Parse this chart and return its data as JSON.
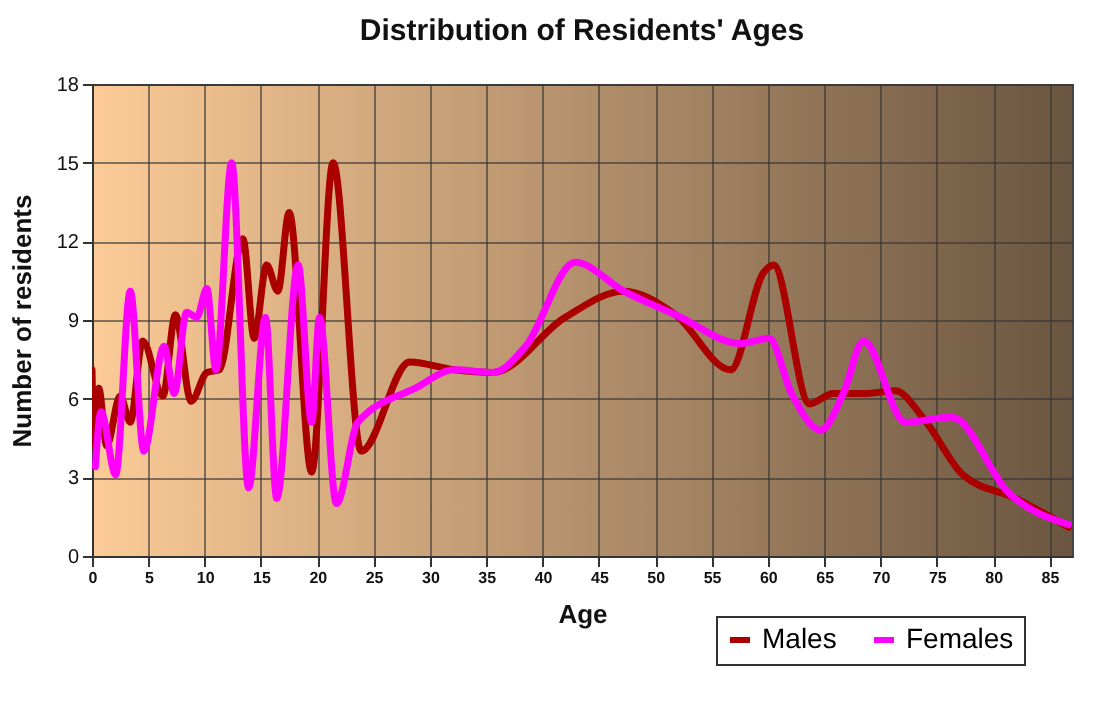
{
  "chart_data": {
    "type": "line",
    "title": "Distribution of Residents' Ages",
    "xlabel": "Age",
    "ylabel": "Number of residents",
    "xlim": [
      0,
      87
    ],
    "xticks": [
      0,
      5,
      10,
      15,
      20,
      25,
      30,
      35,
      40,
      45,
      50,
      55,
      60,
      65,
      70,
      75,
      80,
      85
    ],
    "ylim": [
      0,
      18
    ],
    "yticks": [
      0,
      3,
      6,
      9,
      12,
      15,
      18
    ],
    "grid": true,
    "legend": "bottom right",
    "marker": "none",
    "line_style": "solid",
    "series": [
      {
        "name": "Males",
        "color": "#aa0000",
        "x": [
          0,
          0.2,
          0.6,
          1.3,
          2.5,
          3.4,
          4.5,
          6.3,
          7.4,
          8.8,
          10.2,
          11.3,
          13.4,
          14.4,
          15.5,
          16.5,
          17.5,
          19.5,
          21.4,
          23.9,
          28.2,
          32.2,
          35.6,
          42,
          47.2,
          51.8,
          56.7,
          59.6,
          60.5,
          63.7,
          65.8,
          68.7,
          71.3,
          73.9,
          77.3,
          82,
          86.7
        ],
        "values": [
          7.1,
          4.2,
          6.4,
          4.2,
          6.1,
          5.1,
          8.2,
          6.1,
          9.2,
          5.9,
          7,
          7.1,
          12.1,
          8.3,
          11.1,
          10.1,
          13.1,
          3.2,
          15,
          4,
          7.4,
          7.1,
          7,
          9.1,
          10.1,
          9.2,
          7.1,
          10.8,
          11.1,
          5.8,
          6.2,
          6.2,
          6.3,
          5.2,
          3.1,
          2.2,
          1.1
        ]
      },
      {
        "name": "Females",
        "color": "#ff00ff",
        "x": [
          0.3,
          0.8,
          2.1,
          3.4,
          4.6,
          6.4,
          7.3,
          8.4,
          9.3,
          10.2,
          11,
          12.4,
          13.9,
          15.4,
          16.4,
          18.3,
          19.5,
          20.2,
          21.7,
          23.6,
          28.7,
          32.2,
          35.6,
          38.5,
          42.9,
          47.2,
          51.8,
          57.6,
          60.1,
          62.1,
          64.7,
          66.7,
          68.5,
          72.2,
          76.3,
          81.4,
          86.7
        ],
        "values": [
          3.4,
          5.5,
          3.1,
          10.1,
          4,
          8,
          6.2,
          9.3,
          9.1,
          10.2,
          7.1,
          15,
          2.6,
          9.1,
          2.2,
          11.1,
          5.1,
          9.1,
          2,
          5.1,
          6.4,
          7.1,
          7,
          8,
          11.2,
          10.1,
          9.2,
          8.1,
          8.3,
          6.2,
          4.8,
          6.2,
          8.2,
          5.1,
          5.3,
          2.4,
          1.2
        ]
      }
    ]
  }
}
